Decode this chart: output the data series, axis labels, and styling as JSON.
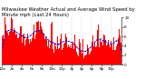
{
  "title": "Milwaukee Weather Actual and Average Wind Speed by Minute mph (Last 24 Hours)",
  "n_points": 1440,
  "bar_color": "#ff0000",
  "line_color": "#0000cc",
  "line_style": "--",
  "line_width": 0.6,
  "background_color": "#ffffff",
  "grid_color": "#999999",
  "ylim": [
    0,
    10
  ],
  "yticks": [
    0,
    2,
    4,
    6,
    8,
    10
  ],
  "ytick_labels": [
    "0",
    "2",
    "4",
    "6",
    "8",
    "10"
  ],
  "title_fontsize": 3.8,
  "tick_fontsize": 3.0,
  "seed": 42
}
